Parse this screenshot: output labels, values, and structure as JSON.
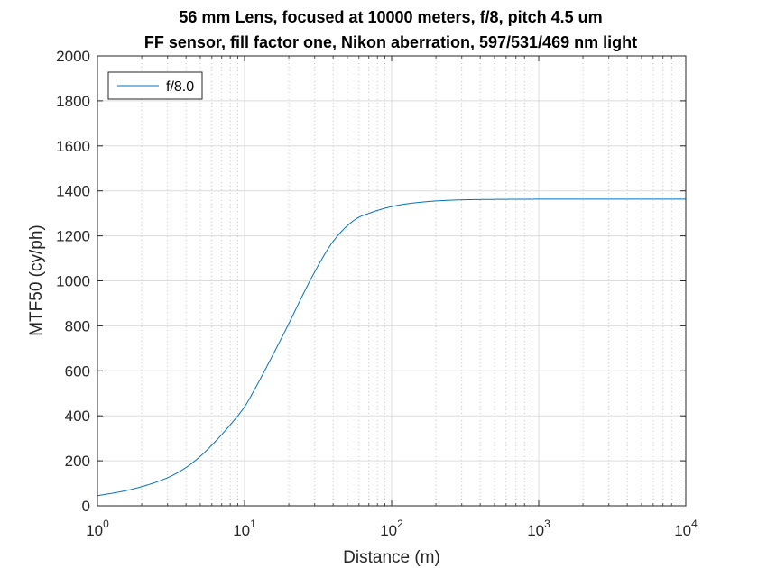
{
  "chart_data": {
    "type": "line",
    "title": "56 mm Lens, focused at 10000 meters, f/8, pitch 4.5 um",
    "subtitle": "FF sensor, fill factor one, Nikon aberration, 597/531/469 nm light",
    "xlabel": "Distance (m)",
    "ylabel": "MTF50 (cy/ph)",
    "xscale": "log",
    "xlim": [
      1,
      10000
    ],
    "ylim": [
      0,
      2000
    ],
    "x_ticks": [
      {
        "base": "10",
        "exp": "0",
        "value": 1
      },
      {
        "base": "10",
        "exp": "1",
        "value": 10
      },
      {
        "base": "10",
        "exp": "2",
        "value": 100
      },
      {
        "base": "10",
        "exp": "3",
        "value": 1000
      },
      {
        "base": "10",
        "exp": "4",
        "value": 10000
      }
    ],
    "y_ticks": [
      "0",
      "200",
      "400",
      "600",
      "800",
      "1000",
      "1200",
      "1400",
      "1600",
      "1800",
      "2000"
    ],
    "grid": true,
    "minor_grid": true,
    "legend": {
      "placement": "top-left"
    },
    "series": [
      {
        "name": "f/8.0",
        "color": "#0072bd",
        "x": [
          1,
          1.5,
          2,
          3,
          4,
          5,
          6,
          8,
          10,
          12,
          15,
          20,
          25,
          30,
          40,
          50,
          60,
          70,
          80,
          100,
          120,
          150,
          200,
          300,
          500,
          1000,
          2000,
          5000,
          10000
        ],
        "y": [
          45,
          65,
          85,
          125,
          170,
          220,
          270,
          360,
          440,
          530,
          650,
          810,
          940,
          1040,
          1175,
          1245,
          1283,
          1300,
          1313,
          1330,
          1340,
          1348,
          1355,
          1360,
          1362,
          1363,
          1363,
          1363,
          1363
        ]
      }
    ]
  }
}
